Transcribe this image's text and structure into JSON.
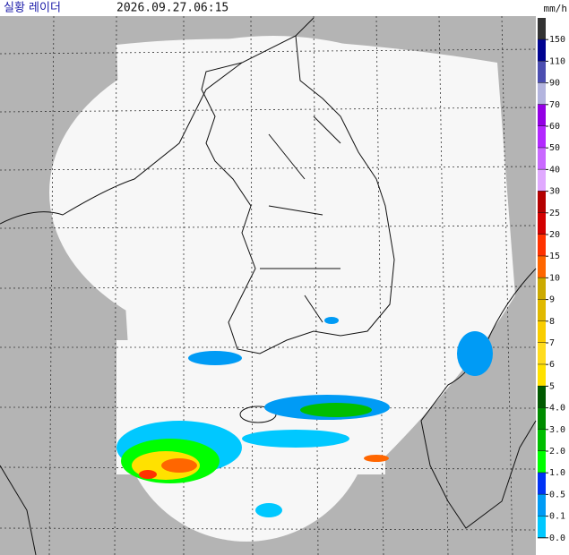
{
  "header": {
    "title": "실황 레이더",
    "timestamp": "2026.09.27.06:15",
    "unit": "mm/h"
  },
  "legend": {
    "items": [
      {
        "label": "150",
        "color": "#333333"
      },
      {
        "label": "110",
        "color": "#000390"
      },
      {
        "label": "90",
        "color": "#4c4eb1"
      },
      {
        "label": "70",
        "color": "#b3b4de"
      },
      {
        "label": "60",
        "color": "#9300e4"
      },
      {
        "label": "50",
        "color": "#b329ff"
      },
      {
        "label": "40",
        "color": "#c969ff"
      },
      {
        "label": "30",
        "color": "#e0a9ff"
      },
      {
        "label": "25",
        "color": "#b40000"
      },
      {
        "label": "20",
        "color": "#d20000"
      },
      {
        "label": "15",
        "color": "#ff3200"
      },
      {
        "label": "10",
        "color": "#ff6600"
      },
      {
        "label": "9",
        "color": "#ccaa00"
      },
      {
        "label": "8",
        "color": "#e0b900"
      },
      {
        "label": "7",
        "color": "#f9cd00"
      },
      {
        "label": "6",
        "color": "#ffdc1f"
      },
      {
        "label": "5",
        "color": "#ffe100"
      },
      {
        "label": "4.0",
        "color": "#005a00"
      },
      {
        "label": "3.0",
        "color": "#008c00"
      },
      {
        "label": "2.0",
        "color": "#00be00"
      },
      {
        "label": "1.0",
        "color": "#00ff00"
      },
      {
        "label": "0.5",
        "color": "#0033f5"
      },
      {
        "label": "0.1",
        "color": "#009bf5"
      },
      {
        "label": "0.0",
        "color": "#00c8ff"
      }
    ]
  }
}
